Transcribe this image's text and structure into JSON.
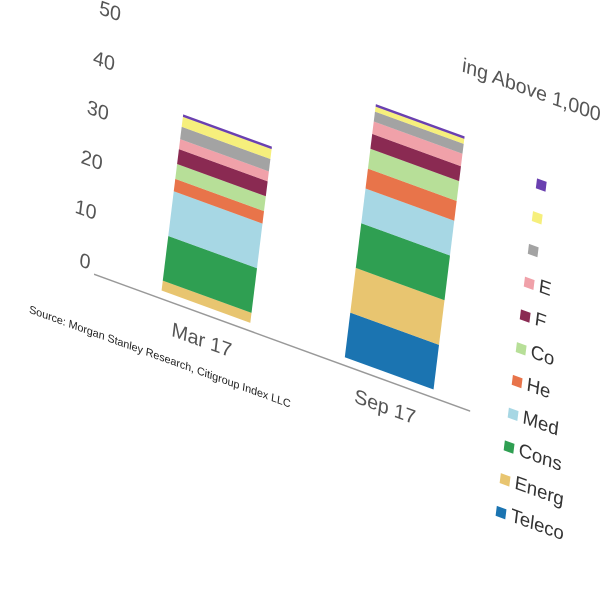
{
  "chart_data": {
    "type": "stacked_bar",
    "title": "ing Above 1,000",
    "source": "Source: Morgan Stanley Research, Citigroup Index LLC",
    "categories": [
      "Mar 17",
      "Sep 17"
    ],
    "ylim": [
      0,
      60
    ],
    "yticks": [
      0,
      10,
      20,
      30,
      40,
      50,
      60
    ],
    "series": [
      {
        "name": "Teleco",
        "color": "#1b74b1",
        "values": [
          0,
          9
        ]
      },
      {
        "name": "Energ",
        "color": "#e8c570",
        "values": [
          2,
          9
        ]
      },
      {
        "name": "Cons",
        "color": "#2f9f52",
        "values": [
          9,
          9
        ]
      },
      {
        "name": "Med",
        "color": "#a7d7e4",
        "values": [
          9,
          7
        ]
      },
      {
        "name": "He",
        "color": "#e8744a",
        "values": [
          2.5,
          4
        ]
      },
      {
        "name": "Co",
        "color": "#b7df98",
        "values": [
          3,
          4
        ]
      },
      {
        "name": "F",
        "color": "#8a2a52",
        "values": [
          3,
          3
        ]
      },
      {
        "name": "E",
        "color": "#f0a1a9",
        "values": [
          2,
          2.5
        ]
      },
      {
        "color": "#a3a3a3",
        "values": [
          2.5,
          2
        ]
      },
      {
        "color": "#f6ef7c",
        "values": [
          2,
          1
        ]
      },
      {
        "color": "#6a40b0",
        "values": [
          0.5,
          0.5
        ]
      }
    ]
  }
}
